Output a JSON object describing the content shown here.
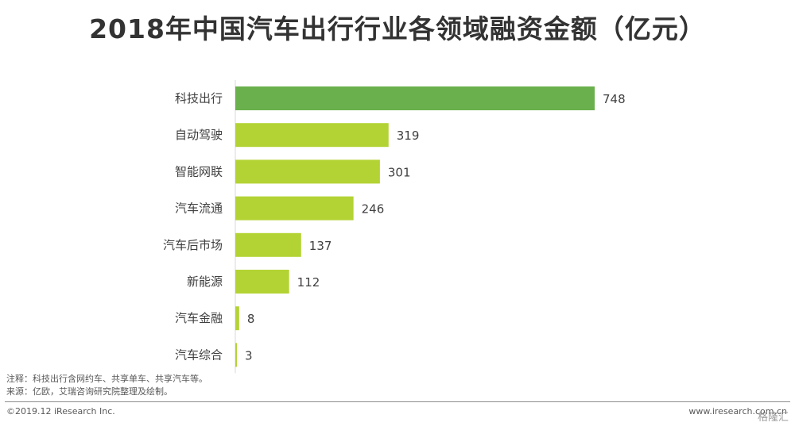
{
  "title": "2018年中国汽车出行行业各领域融资金额（亿元）",
  "chart_data": {
    "type": "bar",
    "orientation": "horizontal",
    "title": "2018年中国汽车出行行业各领域融资金额（亿元）",
    "categories": [
      "科技出行",
      "自动驾驶",
      "智能网联",
      "汽车流通",
      "汽车后市场",
      "新能源",
      "汽车金融",
      "汽车综合"
    ],
    "values": [
      748,
      319,
      301,
      246,
      137,
      112,
      8,
      3
    ],
    "value_labels": [
      "748",
      "319",
      "301",
      "246",
      "137",
      "112",
      "8",
      "3"
    ],
    "colors": {
      "highlight": "#6ab04c",
      "default": "#b3d334"
    },
    "highlight_index": 0,
    "xlim": [
      0,
      748
    ],
    "grid": false,
    "legend": "none"
  },
  "footer": {
    "note": "注释：科技出行含网约车、共享单车、共享汽车等。",
    "source": "来源：亿欧，艾瑞咨询研究院整理及绘制。",
    "copyright": "©2019.12 iResearch Inc.",
    "website": "www.iresearch.com.cn",
    "watermark": "格隆汇"
  }
}
